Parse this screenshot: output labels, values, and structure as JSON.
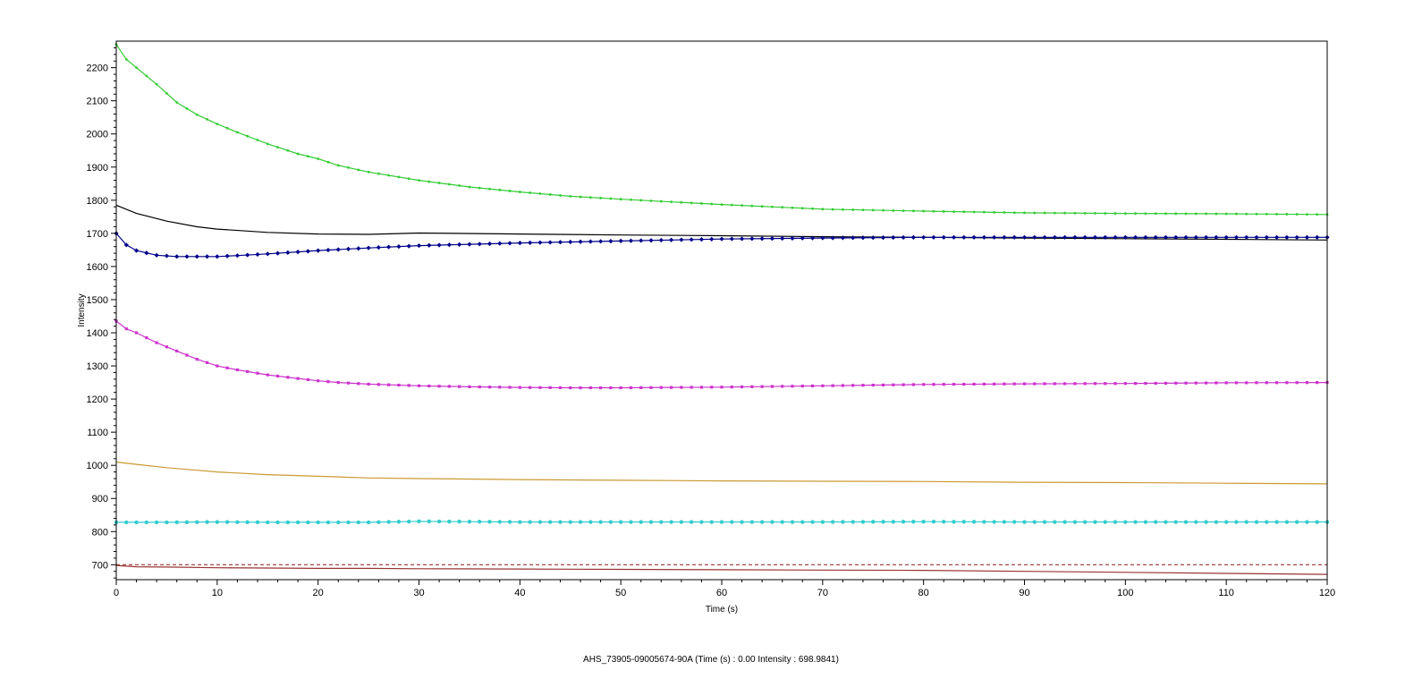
{
  "status": {
    "sample_id": "AHS_73905-09005674-90A",
    "readout": "AHS_73905-09005674-90A (Time (s) : 0.00  Intensity : 698.9841)"
  },
  "chart_data": {
    "type": "line",
    "xlabel": "Time (s)",
    "ylabel": "Intensity",
    "xlim": [
      0,
      120
    ],
    "ylim": [
      655,
      2280
    ],
    "xticks": [
      0,
      10,
      20,
      30,
      40,
      50,
      60,
      70,
      80,
      90,
      100,
      110,
      120
    ],
    "xtick_labels": [
      "0",
      "10",
      "20",
      "30",
      "40",
      "50",
      "60",
      "70",
      "80",
      "90",
      "100",
      "110",
      "120"
    ],
    "yticks": [
      700,
      800,
      900,
      1000,
      1100,
      1200,
      1300,
      1400,
      1500,
      1600,
      1700,
      1800,
      1900,
      2000,
      2100,
      2200
    ],
    "ytick_labels": [
      "700",
      "800",
      "900",
      "1000",
      "1100",
      "1200",
      "1300",
      "1400",
      "1500",
      "1600",
      "1700",
      "1800",
      "1900",
      "2000",
      "2100",
      "2200"
    ],
    "grid": false,
    "legend": false,
    "series": [
      {
        "color": "#33cc33",
        "marker": "dot",
        "x": [
          0,
          1,
          2,
          4,
          6,
          8,
          10,
          12,
          15,
          18,
          20,
          22,
          25,
          30,
          35,
          40,
          45,
          50,
          55,
          60,
          70,
          80,
          90,
          100,
          110,
          120
        ],
        "y": [
          2270,
          2225,
          2200,
          2150,
          2095,
          2058,
          2030,
          2005,
          1970,
          1940,
          1925,
          1905,
          1885,
          1860,
          1840,
          1825,
          1812,
          1803,
          1795,
          1787,
          1773,
          1767,
          1762,
          1760,
          1759,
          1757
        ]
      },
      {
        "color": "#000000",
        "marker": "none",
        "x": [
          0,
          2,
          5,
          8,
          10,
          15,
          20,
          25,
          30,
          40,
          50,
          60,
          70,
          80,
          90,
          100,
          110,
          120
        ],
        "y": [
          1785,
          1760,
          1737,
          1720,
          1713,
          1703,
          1698,
          1697,
          1701,
          1698,
          1695,
          1693,
          1690,
          1688,
          1686,
          1684,
          1682,
          1680
        ]
      },
      {
        "color": "#00008b",
        "marker": "diamond",
        "x": [
          0,
          1,
          2,
          4,
          6,
          8,
          10,
          12,
          15,
          20,
          25,
          30,
          35,
          40,
          45,
          50,
          55,
          60,
          70,
          80,
          90,
          100,
          110,
          120
        ],
        "y": [
          1700,
          1665,
          1648,
          1634,
          1630,
          1630,
          1630,
          1633,
          1638,
          1648,
          1656,
          1663,
          1667,
          1671,
          1674,
          1677,
          1680,
          1683,
          1686,
          1688,
          1688,
          1688,
          1688,
          1688
        ]
      },
      {
        "color": "#cc33cc",
        "marker": "square",
        "x": [
          0,
          1,
          2,
          4,
          6,
          8,
          10,
          12,
          15,
          18,
          20,
          22,
          25,
          30,
          35,
          40,
          45,
          50,
          55,
          60,
          70,
          80,
          90,
          100,
          110,
          120
        ],
        "y": [
          1435,
          1412,
          1400,
          1370,
          1345,
          1320,
          1300,
          1288,
          1273,
          1262,
          1255,
          1250,
          1245,
          1240,
          1237,
          1235,
          1234,
          1234,
          1235,
          1236,
          1240,
          1244,
          1246,
          1247,
          1249,
          1250
        ]
      },
      {
        "color": "#cc9933",
        "marker": "none",
        "x": [
          0,
          2,
          5,
          8,
          10,
          15,
          20,
          25,
          30,
          40,
          50,
          60,
          70,
          80,
          90,
          100,
          110,
          120
        ],
        "y": [
          1010,
          1003,
          993,
          985,
          980,
          972,
          967,
          962,
          960,
          957,
          955,
          953,
          952,
          951,
          949,
          948,
          946,
          944
        ]
      },
      {
        "color": "#33cccc",
        "marker": "circle",
        "x": [
          0,
          5,
          10,
          15,
          20,
          25,
          30,
          35,
          40,
          50,
          60,
          70,
          80,
          90,
          100,
          110,
          120
        ],
        "y": [
          828,
          828,
          829,
          828,
          828,
          828,
          831,
          830,
          829,
          829,
          829,
          829,
          830,
          829,
          829,
          829,
          829
        ]
      },
      {
        "color": "#993333",
        "marker": "none",
        "x": [
          0,
          2,
          5,
          10,
          15,
          20,
          25,
          30,
          40,
          50,
          60,
          70,
          80,
          90,
          100,
          110,
          120
        ],
        "y": [
          698,
          694,
          693,
          691,
          690,
          689,
          689,
          688,
          687,
          686,
          685,
          684,
          683,
          680,
          677,
          674,
          671
        ]
      },
      {
        "color": "#993333",
        "marker": "none",
        "dashed": true,
        "x": [
          0,
          120
        ],
        "y": [
          700,
          700
        ]
      }
    ]
  }
}
